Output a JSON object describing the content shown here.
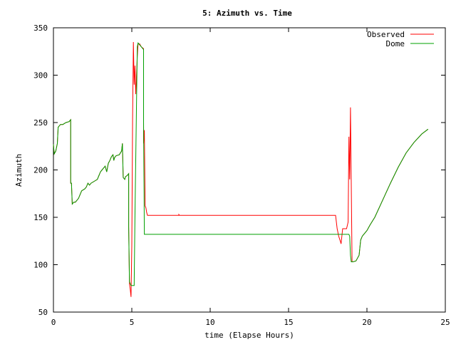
{
  "chart_data": {
    "type": "line",
    "title": "5: Azimuth vs. Time",
    "xlabel": "time (Elapse Hours)",
    "ylabel": "Azimuth",
    "xlim": [
      0,
      25
    ],
    "ylim": [
      50,
      350
    ],
    "xticks": [
      0,
      5,
      10,
      15,
      20,
      25
    ],
    "yticks": [
      50,
      100,
      150,
      200,
      250,
      300,
      350
    ],
    "grid": false,
    "legend_position": "top-right",
    "series": [
      {
        "name": "Observed",
        "color": "#ff0000",
        "points": [
          [
            0,
            227
          ],
          [
            0.05,
            217
          ],
          [
            0.15,
            220
          ],
          [
            0.25,
            228
          ],
          [
            0.3,
            245
          ],
          [
            0.45,
            248
          ],
          [
            0.6,
            248
          ],
          [
            0.8,
            250
          ],
          [
            1.0,
            251
          ],
          [
            1.1,
            253
          ],
          [
            1.1,
            186
          ],
          [
            1.15,
            186
          ],
          [
            1.2,
            164
          ],
          [
            1.3,
            166
          ],
          [
            1.4,
            166
          ],
          [
            1.5,
            168
          ],
          [
            1.6,
            170
          ],
          [
            1.7,
            174
          ],
          [
            1.8,
            178
          ],
          [
            2.0,
            180
          ],
          [
            2.1,
            182
          ],
          [
            2.2,
            186
          ],
          [
            2.3,
            184
          ],
          [
            2.4,
            186
          ],
          [
            2.6,
            188
          ],
          [
            2.8,
            190
          ],
          [
            2.9,
            194
          ],
          [
            3.0,
            198
          ],
          [
            3.1,
            200
          ],
          [
            3.2,
            202
          ],
          [
            3.3,
            204
          ],
          [
            3.4,
            198
          ],
          [
            3.5,
            207
          ],
          [
            3.6,
            210
          ],
          [
            3.7,
            214
          ],
          [
            3.8,
            216
          ],
          [
            3.85,
            210
          ],
          [
            3.9,
            213
          ],
          [
            4.0,
            215
          ],
          [
            4.2,
            216
          ],
          [
            4.35,
            220
          ],
          [
            4.4,
            228
          ],
          [
            4.45,
            192
          ],
          [
            4.55,
            190
          ],
          [
            4.6,
            193
          ],
          [
            4.7,
            194
          ],
          [
            4.8,
            196
          ],
          [
            4.8,
            140
          ],
          [
            4.85,
            80
          ],
          [
            4.9,
            74
          ],
          [
            4.95,
            66
          ],
          [
            5.0,
            120
          ],
          [
            5.05,
            255
          ],
          [
            5.1,
            335
          ],
          [
            5.15,
            290
          ],
          [
            5.2,
            310
          ],
          [
            5.25,
            280
          ],
          [
            5.3,
            300
          ],
          [
            5.35,
            320
          ],
          [
            5.4,
            333
          ],
          [
            5.5,
            333
          ],
          [
            5.6,
            330
          ],
          [
            5.75,
            328
          ],
          [
            5.75,
            228
          ],
          [
            5.8,
            242
          ],
          [
            5.85,
            162
          ],
          [
            5.9,
            160
          ],
          [
            5.95,
            155
          ],
          [
            6.0,
            152
          ],
          [
            8.0,
            152
          ],
          [
            8.0,
            153
          ],
          [
            8.05,
            152
          ],
          [
            18.0,
            152
          ],
          [
            18.1,
            138
          ],
          [
            18.2,
            130
          ],
          [
            18.3,
            125
          ],
          [
            18.35,
            122
          ],
          [
            18.45,
            138
          ],
          [
            18.7,
            138
          ],
          [
            18.8,
            145
          ],
          [
            18.85,
            235
          ],
          [
            18.9,
            190
          ],
          [
            18.95,
            266
          ],
          [
            19.0,
            185
          ],
          [
            19.05,
            103
          ],
          [
            19.1,
            103
          ],
          [
            19.3,
            104
          ],
          [
            19.5,
            110
          ],
          [
            19.6,
            126
          ],
          [
            19.7,
            130
          ],
          [
            20.0,
            136
          ],
          [
            20.2,
            142
          ],
          [
            20.5,
            150
          ],
          [
            21.0,
            168
          ],
          [
            21.5,
            186
          ],
          [
            22.0,
            203
          ],
          [
            22.5,
            218
          ],
          [
            23.0,
            229
          ],
          [
            23.5,
            238
          ],
          [
            23.9,
            243
          ]
        ]
      },
      {
        "name": "Dome",
        "color": "#00a000",
        "points": [
          [
            0,
            227
          ],
          [
            0.05,
            217
          ],
          [
            0.15,
            220
          ],
          [
            0.25,
            228
          ],
          [
            0.3,
            245
          ],
          [
            0.45,
            248
          ],
          [
            0.6,
            248
          ],
          [
            0.8,
            250
          ],
          [
            1.0,
            251
          ],
          [
            1.1,
            253
          ],
          [
            1.1,
            186
          ],
          [
            1.15,
            186
          ],
          [
            1.2,
            164
          ],
          [
            1.3,
            166
          ],
          [
            1.4,
            166
          ],
          [
            1.5,
            168
          ],
          [
            1.6,
            170
          ],
          [
            1.7,
            174
          ],
          [
            1.8,
            178
          ],
          [
            2.0,
            180
          ],
          [
            2.1,
            182
          ],
          [
            2.2,
            186
          ],
          [
            2.3,
            184
          ],
          [
            2.4,
            186
          ],
          [
            2.6,
            188
          ],
          [
            2.8,
            190
          ],
          [
            2.9,
            194
          ],
          [
            3.0,
            198
          ],
          [
            3.1,
            200
          ],
          [
            3.2,
            202
          ],
          [
            3.3,
            204
          ],
          [
            3.4,
            198
          ],
          [
            3.5,
            207
          ],
          [
            3.6,
            210
          ],
          [
            3.7,
            214
          ],
          [
            3.8,
            216
          ],
          [
            3.85,
            210
          ],
          [
            3.9,
            213
          ],
          [
            4.0,
            215
          ],
          [
            4.2,
            216
          ],
          [
            4.35,
            220
          ],
          [
            4.4,
            228
          ],
          [
            4.45,
            192
          ],
          [
            4.55,
            190
          ],
          [
            4.6,
            193
          ],
          [
            4.7,
            194
          ],
          [
            4.8,
            196
          ],
          [
            4.8,
            140
          ],
          [
            4.85,
            82
          ],
          [
            4.95,
            78
          ],
          [
            5.15,
            78
          ],
          [
            5.2,
            150
          ],
          [
            5.35,
            330
          ],
          [
            5.4,
            334
          ],
          [
            5.6,
            330
          ],
          [
            5.75,
            327
          ],
          [
            5.75,
            250
          ],
          [
            5.8,
            132
          ],
          [
            18.8,
            132
          ],
          [
            18.85,
            132
          ],
          [
            18.9,
            130
          ],
          [
            18.95,
            110
          ],
          [
            19.0,
            103
          ],
          [
            19.1,
            103
          ],
          [
            19.3,
            104
          ],
          [
            19.5,
            110
          ],
          [
            19.6,
            126
          ],
          [
            19.7,
            130
          ],
          [
            20.0,
            136
          ],
          [
            20.2,
            142
          ],
          [
            20.5,
            150
          ],
          [
            21.0,
            168
          ],
          [
            21.5,
            186
          ],
          [
            22.0,
            203
          ],
          [
            22.5,
            218
          ],
          [
            23.0,
            229
          ],
          [
            23.5,
            238
          ],
          [
            23.9,
            243
          ]
        ]
      }
    ]
  }
}
